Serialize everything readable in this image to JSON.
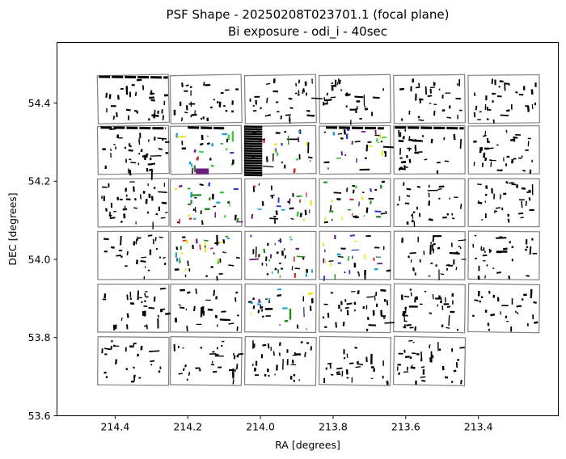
{
  "chart_data": {
    "type": "scatter",
    "title": [
      "PSF Shape - 20250208T023701.1 (focal plane)",
      "Bi exposure - odi_i - 40sec"
    ],
    "xlabel": "RA [degrees]",
    "ylabel": "DEC [degrees]",
    "xlim": [
      214.56,
      213.18
    ],
    "ylim": [
      53.6,
      54.555
    ],
    "x_inverted": true,
    "xticks": [
      214.4,
      214.2,
      214.0,
      213.8,
      213.6,
      213.4
    ],
    "xtick_labels": [
      "214.4",
      "214.2",
      "214.0",
      "213.8",
      "213.6",
      "213.4"
    ],
    "yticks": [
      53.6,
      53.8,
      54.0,
      54.2,
      54.4
    ],
    "ytick_labels": [
      "53.6",
      "53.8",
      "54.0",
      "54.2",
      "54.4"
    ],
    "grid": false,
    "ccd_cells": {
      "ra_centers": [
        214.35,
        214.15,
        213.945,
        213.74,
        213.535,
        213.33
      ],
      "dec_centers": [
        54.41,
        54.28,
        54.145,
        54.01,
        53.875,
        53.74
      ],
      "ra_width": 0.2,
      "dec_height": 0.127,
      "missing": [
        [
          5,
          5
        ]
      ]
    },
    "whisker_colors": [
      "#000000",
      "#1e1e1e",
      "#32cd32",
      "#228b22",
      "#2e3bc4",
      "#6a1b7a",
      "#e6e600",
      "#d62728",
      "#1f9fd6"
    ]
  }
}
